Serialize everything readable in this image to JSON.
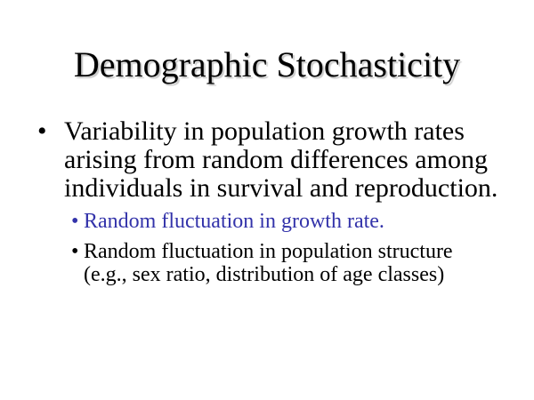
{
  "slide": {
    "title": "Demographic Stochasticity",
    "bullet_char": "•",
    "bullets": {
      "main": {
        "lines": [
          "Variability in population growth rates",
          "arising from random differences among",
          "individuals in survival and reproduction."
        ]
      },
      "sub1": {
        "lines": [
          "Random fluctuation in growth rate."
        ]
      },
      "sub2": {
        "lines": [
          "Random fluctuation in population structure",
          "(e.g., sex ratio, distribution of age classes)"
        ]
      }
    },
    "colors": {
      "text": "#000000",
      "sub1_text": "#3333AA",
      "background": "#FFFFFF",
      "title_shadow": "#C9C9C9"
    }
  }
}
